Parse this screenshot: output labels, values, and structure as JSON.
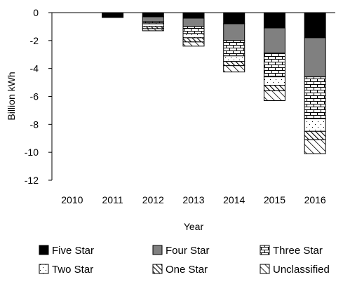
{
  "chart_data": {
    "type": "bar",
    "stacked": true,
    "categories": [
      "2010",
      "2011",
      "2012",
      "2013",
      "2014",
      "2015",
      "2016"
    ],
    "xlabel": "Year",
    "ylabel": "Billion kWh",
    "ylim": [
      -12,
      0
    ],
    "yticks": [
      0,
      -2,
      -4,
      -6,
      -8,
      -10,
      -12
    ],
    "ytick_labels": [
      "0",
      "-2",
      "-4",
      "-6",
      "-8",
      "-10",
      "-12"
    ],
    "grid": false,
    "legend_position": "bottom",
    "series": [
      {
        "name": "Five Star",
        "pattern": "solid-black",
        "values": [
          0,
          -0.35,
          -0.3,
          -0.4,
          -0.8,
          -1.1,
          -1.8
        ]
      },
      {
        "name": "Four Star",
        "pattern": "solid-gray",
        "values": [
          0,
          0,
          -0.35,
          -0.6,
          -1.2,
          -1.8,
          -2.8
        ]
      },
      {
        "name": "Three Star",
        "pattern": "brick",
        "values": [
          0,
          0,
          -0.15,
          -0.5,
          -1.1,
          -1.7,
          -3.0
        ]
      },
      {
        "name": "Two Star",
        "pattern": "dots",
        "values": [
          0,
          0,
          -0.2,
          -0.3,
          -0.4,
          -0.6,
          -0.9
        ]
      },
      {
        "name": "One Star",
        "pattern": "diag-dense",
        "values": [
          0,
          0,
          -0.15,
          -0.3,
          -0.3,
          -0.4,
          -0.6
        ]
      },
      {
        "name": "Unclassified",
        "pattern": "diag-sparse",
        "values": [
          0,
          0,
          -0.15,
          -0.3,
          -0.45,
          -0.7,
          -1.0
        ]
      }
    ]
  }
}
